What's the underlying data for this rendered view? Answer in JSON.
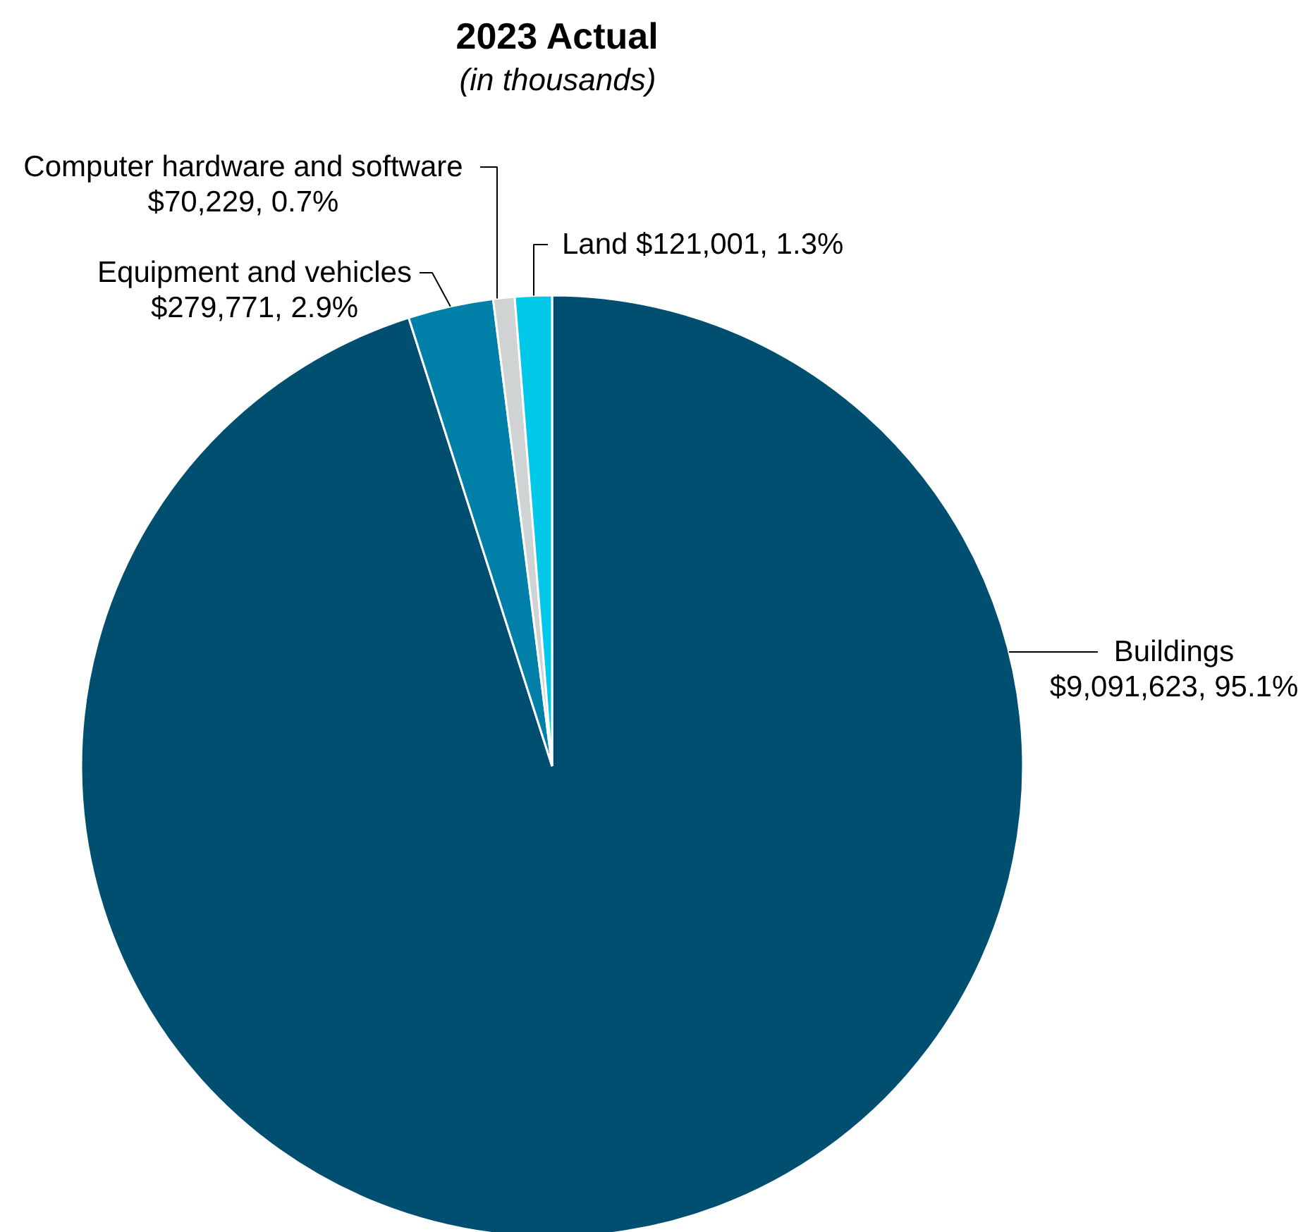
{
  "chart_data": {
    "type": "pie",
    "title": "2023 Actual",
    "subtitle": "(in thousands)",
    "categories": [
      "Buildings",
      "Equipment and vehicles",
      "Computer hardware and software",
      "Land"
    ],
    "values": [
      9091623,
      279771,
      70229,
      121001
    ],
    "colors": [
      "#004f71",
      "#0080a8",
      "#d0d3d4",
      "#00c8e8"
    ],
    "value_labels": [
      "$9,091,623, 95.1%",
      "$279,771, 2.9%",
      "$70,229, 0.7%",
      "$121,001, 1.3%"
    ]
  }
}
